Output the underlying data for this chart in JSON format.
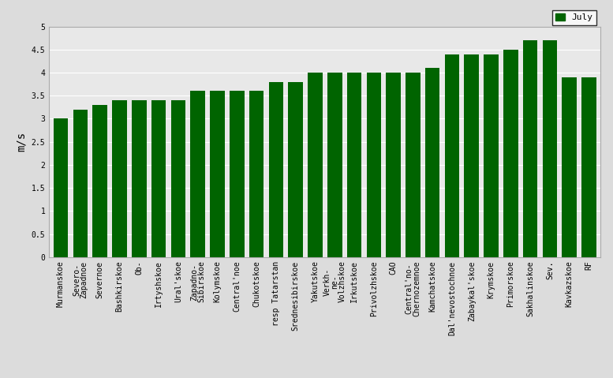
{
  "categories": [
    "Murmanskoe",
    "Severo-\nZapadnoe",
    "Severnoe",
    "Bashkirskoe",
    "Ob-",
    "Irtyshskoe",
    "Ural'skoe",
    "Zapadno-\nSibirskoe",
    "Kolymskoe",
    "Central'noe",
    "Chukotskoe",
    "resp Tatarstan",
    "Srednesibirskoe",
    "Yakutskoe",
    "Verkh-\nne-\nVolzhskoe",
    "Irkutskoe",
    "Privolzhskoe",
    "CAO",
    "Central'no-\nChernozemnoe",
    "Kamchatskoe",
    "Dal'nevostochnoe",
    "Zabaykal'skoe",
    "Krymskoe",
    "Primorskoe",
    "Sakhalinskoe",
    "Sev.",
    "Kavkazskoe",
    "RF"
  ],
  "values": [
    3.0,
    3.2,
    3.3,
    3.4,
    3.4,
    3.4,
    3.4,
    3.6,
    3.6,
    3.6,
    3.6,
    3.8,
    3.8,
    4.0,
    4.0,
    4.0,
    4.0,
    4.0,
    4.0,
    4.1,
    4.4,
    4.4,
    4.4,
    4.5,
    4.7,
    4.7,
    3.9,
    3.9
  ],
  "bar_color": "#006400",
  "background_color": "#dcdcdc",
  "plot_bg_color": "#e8e8e8",
  "ylabel": "m/s",
  "ylim": [
    0,
    5
  ],
  "yticks": [
    0,
    0.5,
    1.0,
    1.5,
    2.0,
    2.5,
    3.0,
    3.5,
    4.0,
    4.5,
    5.0
  ],
  "ytick_labels": [
    "0",
    "0.5",
    "1",
    "1.5",
    "2",
    "2.5",
    "3",
    "3.5",
    "4",
    "4.5",
    "5"
  ],
  "legend_label": "July",
  "legend_color": "#006400",
  "tick_fontsize": 7,
  "ylabel_fontsize": 10
}
